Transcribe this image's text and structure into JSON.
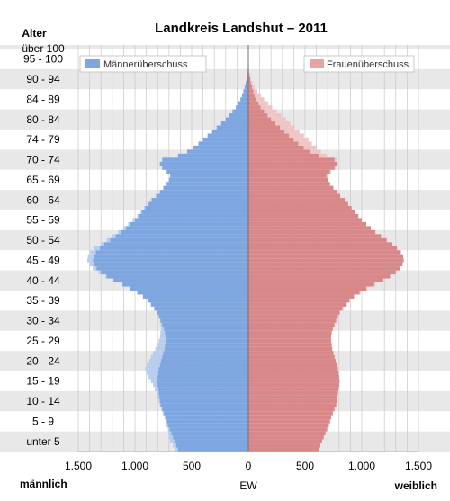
{
  "chart_data": {
    "type": "bar",
    "subtype": "population-pyramid",
    "title": "Landkreis Landshut – 2011",
    "ylabel": "Alter",
    "xlabel": "EW",
    "left_label": "männlich",
    "right_label": "weiblich",
    "xlim": [
      -1500,
      1500
    ],
    "x_ticks": [
      {
        "value": -1500,
        "label": "1.500"
      },
      {
        "value": -1000,
        "label": "1.000"
      },
      {
        "value": -500,
        "label": "500"
      },
      {
        "value": 0,
        "label": "0"
      },
      {
        "value": 500,
        "label": "500"
      },
      {
        "value": 1000,
        "label": "1.000"
      },
      {
        "value": 1500,
        "label": "1.500"
      }
    ],
    "age_group_labels": [
      "unter 5",
      "5 - 9",
      "10 - 14",
      "15 - 19",
      "20 - 24",
      "25 - 29",
      "30 - 34",
      "35 - 39",
      "40 - 44",
      "45 - 49",
      "50 - 54",
      "55 - 59",
      "60 - 64",
      "65 - 69",
      "70 - 74",
      "74 - 79",
      "80 - 84",
      "84 - 89",
      "90 - 94",
      "95 - 100",
      "über 100"
    ],
    "grid": true,
    "legend": [
      {
        "name": "Männerüberschuss",
        "position": "top-left",
        "color": "#7ea6e0"
      },
      {
        "name": "Frauenüberschuss",
        "position": "top-right",
        "color": "#e6a4a4"
      }
    ],
    "colors": {
      "male": "#7ea6e0",
      "female": "#d9888a",
      "male_surplus": "#b9cdee",
      "female_surplus": "#efc6c6",
      "band": "#e8e8e8"
    },
    "ages_order": "age 0 to 100, one value per year of age",
    "male": [
      650,
      665,
      690,
      700,
      705,
      710,
      720,
      720,
      740,
      755,
      765,
      780,
      790,
      800,
      810,
      825,
      840,
      860,
      880,
      900,
      910,
      895,
      875,
      860,
      840,
      820,
      800,
      790,
      780,
      775,
      770,
      775,
      780,
      790,
      805,
      830,
      860,
      890,
      930,
      980,
      1040,
      1110,
      1190,
      1260,
      1320,
      1370,
      1400,
      1420,
      1415,
      1395,
      1360,
      1300,
      1250,
      1200,
      1150,
      1100,
      1060,
      1020,
      980,
      950,
      920,
      890,
      860,
      820,
      780,
      750,
      720,
      700,
      690,
      720,
      760,
      780,
      760,
      620,
      540,
      490,
      440,
      400,
      360,
      320,
      280,
      240,
      200,
      170,
      140,
      110,
      90,
      70,
      55,
      45,
      33,
      23,
      16,
      10,
      6,
      4,
      2,
      1,
      1,
      0,
      0
    ],
    "female": [
      620,
      635,
      650,
      665,
      680,
      695,
      710,
      720,
      730,
      745,
      760,
      775,
      780,
      785,
      790,
      795,
      800,
      805,
      800,
      795,
      790,
      780,
      770,
      760,
      750,
      740,
      735,
      730,
      730,
      735,
      745,
      760,
      775,
      790,
      810,
      840,
      870,
      900,
      940,
      990,
      1050,
      1120,
      1190,
      1250,
      1300,
      1340,
      1360,
      1370,
      1365,
      1345,
      1310,
      1270,
      1220,
      1170,
      1120,
      1080,
      1040,
      1000,
      970,
      940,
      910,
      880,
      850,
      810,
      780,
      750,
      720,
      700,
      700,
      730,
      770,
      790,
      780,
      690,
      640,
      600,
      560,
      530,
      490,
      450,
      410,
      370,
      330,
      290,
      250,
      210,
      175,
      140,
      110,
      80,
      55,
      38,
      25,
      15,
      8,
      5,
      3,
      2,
      1,
      0,
      0
    ]
  }
}
